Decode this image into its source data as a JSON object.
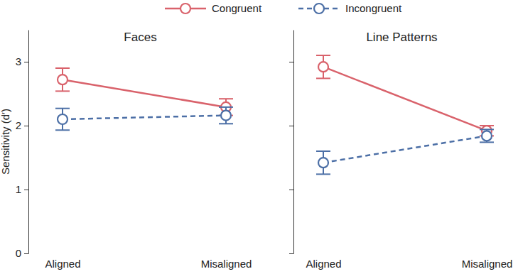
{
  "chart_data": [
    {
      "type": "line",
      "title": "Faces",
      "y_label": "Sensitivity (d′)",
      "categories": [
        "Aligned",
        "Misaligned"
      ],
      "ylim": [
        0,
        3.5
      ],
      "yticks": [
        0,
        1,
        2,
        3
      ],
      "legend": "top",
      "series": [
        {
          "name": "Congruent",
          "color": "#d9626b",
          "line_style": "solid",
          "marker": "circle",
          "values": [
            2.72,
            2.29
          ],
          "errors": [
            0.18,
            0.13
          ]
        },
        {
          "name": "Incongruent",
          "color": "#4c6fa6",
          "line_style": "dashed",
          "marker": "circle",
          "values": [
            2.1,
            2.16
          ],
          "errors": [
            0.17,
            0.13
          ]
        }
      ]
    },
    {
      "type": "line",
      "title": "Line Patterns",
      "categories": [
        "Aligned",
        "Misaligned"
      ],
      "ylim": [
        0,
        3.5
      ],
      "yticks": [
        0,
        1,
        2,
        3
      ],
      "tick_labels": "x",
      "series": [
        {
          "name": "Congruent",
          "color": "#d9626b",
          "line_style": "solid",
          "marker": "circle",
          "values": [
            2.92,
            1.92
          ],
          "errors": [
            0.18,
            0.08
          ]
        },
        {
          "name": "Incongruent",
          "color": "#4c6fa6",
          "line_style": "dashed",
          "marker": "circle",
          "values": [
            1.42,
            1.84
          ],
          "errors": [
            0.18,
            0.1
          ]
        }
      ]
    }
  ]
}
